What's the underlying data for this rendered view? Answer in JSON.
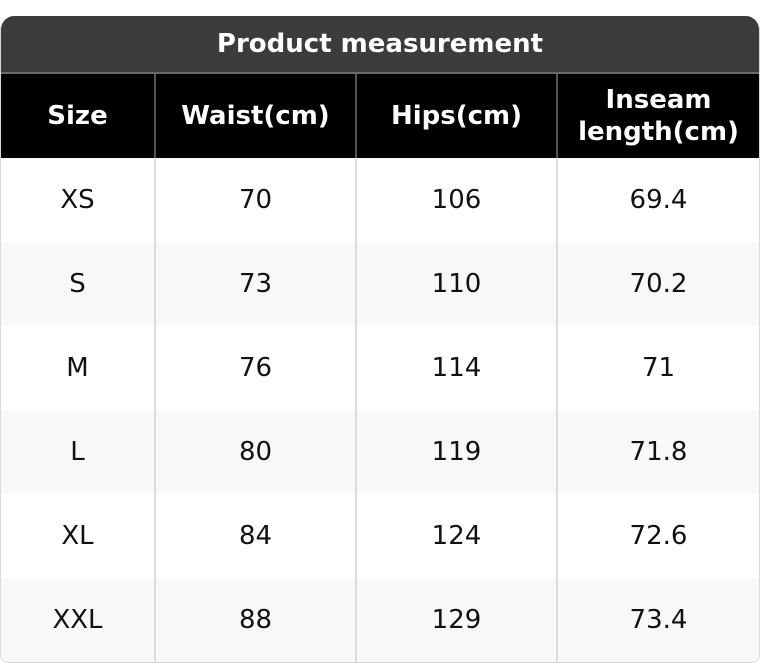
{
  "title": "Product measurement",
  "columns": [
    "Size",
    "Waist(cm)",
    "Hips(cm)",
    "Inseam length(cm)"
  ],
  "rows": [
    [
      "XS",
      "70",
      "106",
      "69.4"
    ],
    [
      "S",
      "73",
      "110",
      "70.2"
    ],
    [
      "M",
      "76",
      "114",
      "71"
    ],
    [
      "L",
      "80",
      "119",
      "71.8"
    ],
    [
      "XL",
      "84",
      "124",
      "72.6"
    ],
    [
      "XXL",
      "88",
      "129",
      "73.4"
    ]
  ],
  "colors": {
    "title_bg": "#3c3c3c",
    "header_bg": "#000000",
    "alt_row_bg": "#f8f8f8"
  }
}
